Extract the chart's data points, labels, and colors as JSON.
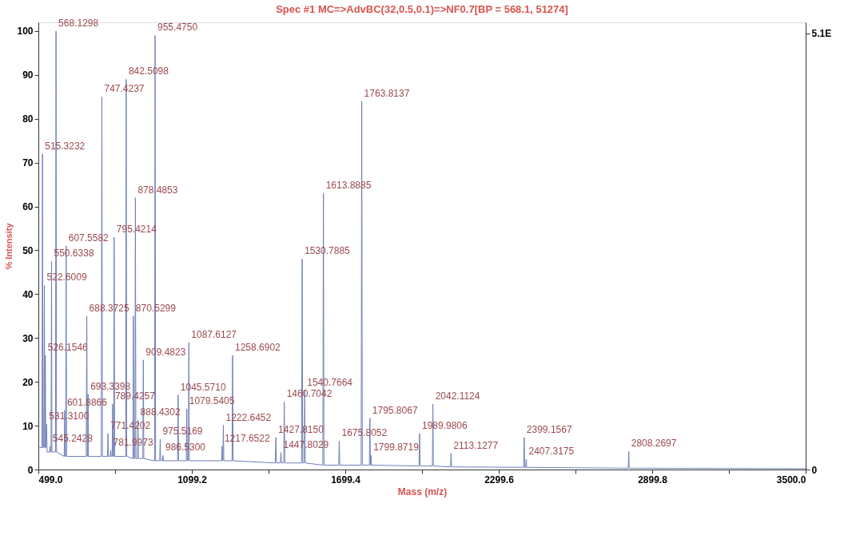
{
  "chart_data": {
    "type": "line",
    "title": "Spec #1 MC=>AdvBC(32,0.5,0.1)=>NF0.7[BP = 568.1, 51274]",
    "xlabel": "Mass (m/z)",
    "ylabel": "% Intensity",
    "xlim": [
      499,
      3500
    ],
    "xticks": [
      {
        "value": 499,
        "label": "499.0"
      },
      {
        "value": 799.1,
        "label": null
      },
      {
        "value": 1099.2,
        "label": "1099.2"
      },
      {
        "value": 1399.3,
        "label": null
      },
      {
        "value": 1699.4,
        "label": "1699.4"
      },
      {
        "value": 1999.5,
        "label": null
      },
      {
        "value": 2299.6,
        "label": "2299.6"
      },
      {
        "value": 2599.7,
        "label": null
      },
      {
        "value": 2899.8,
        "label": "2899.8"
      },
      {
        "value": 3199.9,
        "label": null
      },
      {
        "value": 3500,
        "label": "3500.0"
      }
    ],
    "ylim": [
      0,
      102
    ],
    "yticks": [
      0,
      10,
      20,
      30,
      40,
      50,
      60,
      70,
      80,
      90,
      100
    ],
    "y2lim": [
      0,
      5.23
    ],
    "y2ticks": [
      {
        "value": 0,
        "label": "0"
      },
      {
        "value": 5.1,
        "label": "5.1E"
      }
    ],
    "grid": false,
    "marker": "none",
    "line_style": "solid",
    "series": [
      {
        "color": "#6f7fb8",
        "x": [
          499,
          513,
          515.3,
          517,
          520,
          522.6,
          524,
          526.2,
          528,
          531.3,
          533,
          543,
          545.2,
          547,
          548.5,
          550.6,
          552,
          566,
          568.1,
          570,
          600,
          601.9,
          603,
          605.5,
          607.6,
          609.5,
          686,
          688.4,
          690.5,
          692,
          693.3,
          695,
          745,
          747.4,
          749.5,
          769.5,
          771.4,
          773,
          780,
          782,
          784,
          787.5,
          789.4,
          791.5,
          793.5,
          795.4,
          797.5,
          840.5,
          842.5,
          844.5,
          868.5,
          870.5,
          872.5,
          876.5,
          878.5,
          880.5,
          886.5,
          888.4,
          890.5,
          907.5,
          909.5,
          911.5,
          953.5,
          955.5,
          957.5,
          973.5,
          975.5,
          977.5,
          984.5,
          986.5,
          988.5,
          1043.5,
          1045.6,
          1047.5,
          1077.5,
          1079.5,
          1081.5,
          1085.5,
          1087.6,
          1089.5,
          1215.5,
          1217.7,
          1219.5,
          1220.5,
          1222.6,
          1224.5,
          1256.5,
          1258.7,
          1260.5,
          1425.5,
          1427.8,
          1430,
          1445.5,
          1447.8,
          1450,
          1458.5,
          1460.7,
          1463,
          1528.5,
          1530.8,
          1533,
          1538.5,
          1540.8,
          1543,
          1611.5,
          1613.9,
          1616,
          1673.5,
          1675.8,
          1678,
          1761.5,
          1763.8,
          1766,
          1793.5,
          1795.8,
          1797.8,
          1799.9,
          1802,
          1987.5,
          1990,
          1992,
          2040,
          2042.1,
          2044,
          2111,
          2113.1,
          2115,
          2397,
          2399.2,
          2401,
          2405,
          2407.3,
          2409,
          2806,
          2808.3,
          2810,
          3500
        ],
        "values": [
          5,
          5,
          72,
          5,
          5,
          42,
          5,
          26,
          5,
          10.3,
          4,
          4,
          5.3,
          4,
          4,
          47.5,
          4,
          4,
          100,
          4,
          3,
          13.5,
          3,
          3,
          51,
          3,
          3,
          35,
          3,
          3,
          17.2,
          3,
          3,
          85,
          3,
          3,
          8.2,
          3,
          3,
          4.4,
          3,
          3,
          14.9,
          3,
          3,
          53,
          3,
          3,
          89,
          3,
          2.5,
          35,
          2.5,
          2.5,
          62,
          2.5,
          2.5,
          11.3,
          2.5,
          2.5,
          25,
          2.5,
          2,
          99,
          2,
          2,
          6.9,
          2,
          2,
          3.2,
          2,
          2,
          17,
          2,
          2,
          13.8,
          2,
          2,
          29,
          2,
          2,
          5.3,
          2,
          2,
          10.1,
          2,
          2,
          26,
          2,
          1.5,
          7.3,
          1.5,
          1.5,
          3.9,
          1.5,
          1.5,
          15.4,
          1.5,
          1.5,
          48,
          1.5,
          1.5,
          18,
          1.5,
          1,
          63,
          1,
          1,
          6.5,
          1,
          1,
          84,
          1,
          1,
          11.7,
          1,
          3.2,
          1,
          0.8,
          8.2,
          0.8,
          0.8,
          14.9,
          0.8,
          0.6,
          3.7,
          0.6,
          0.5,
          7.3,
          0.5,
          0.5,
          2.3,
          0.5,
          0.3,
          4.1,
          0.3,
          0.2
        ]
      }
    ],
    "annotations": [
      {
        "text": "515.3232",
        "x": 515.3232,
        "y": 72
      },
      {
        "text": "522.6009",
        "x": 522.6009,
        "y": 42
      },
      {
        "text": "526.1546",
        "x": 526.1546,
        "y": 26
      },
      {
        "text": "531.3100",
        "x": 531.31,
        "y": 10.3
      },
      {
        "text": "545.2428",
        "x": 545.2428,
        "y": 5.3
      },
      {
        "text": "550.6338",
        "x": 550.6338,
        "y": 47.5
      },
      {
        "text": "568.1298",
        "x": 568.1298,
        "y": 100
      },
      {
        "text": "601.8866",
        "x": 601.8866,
        "y": 13.5
      },
      {
        "text": "607.5582",
        "x": 607.5582,
        "y": 51
      },
      {
        "text": "688.3725",
        "x": 688.3725,
        "y": 35
      },
      {
        "text": "693.3398",
        "x": 693.3398,
        "y": 17.2
      },
      {
        "text": "747.4237",
        "x": 747.4237,
        "y": 85
      },
      {
        "text": "771.4202",
        "x": 771.4202,
        "y": 8.2
      },
      {
        "text": "781.9973",
        "x": 781.9973,
        "y": 4.4
      },
      {
        "text": "789.4257",
        "x": 789.4257,
        "y": 14.9
      },
      {
        "text": "795.4214",
        "x": 795.4214,
        "y": 53
      },
      {
        "text": "842.5098",
        "x": 842.5098,
        "y": 89
      },
      {
        "text": "870.5299",
        "x": 870.5299,
        "y": 35
      },
      {
        "text": "878.4853",
        "x": 878.4853,
        "y": 62
      },
      {
        "text": "888.4302",
        "x": 888.4302,
        "y": 11.3
      },
      {
        "text": "909.4823",
        "x": 909.4823,
        "y": 25
      },
      {
        "text": "955.4750",
        "x": 955.475,
        "y": 99
      },
      {
        "text": "975.5169",
        "x": 975.5169,
        "y": 6.9
      },
      {
        "text": "986.5300",
        "x": 986.53,
        "y": 3.2
      },
      {
        "text": "1045.5710",
        "x": 1045.571,
        "y": 17
      },
      {
        "text": "1079.5405",
        "x": 1079.5405,
        "y": 13.8
      },
      {
        "text": "1087.6127",
        "x": 1087.6127,
        "y": 29
      },
      {
        "text": "1217.6522",
        "x": 1217.6522,
        "y": 5.3
      },
      {
        "text": "1222.6452",
        "x": 1222.6452,
        "y": 10.1
      },
      {
        "text": "1258.6902",
        "x": 1258.6902,
        "y": 26
      },
      {
        "text": "1427.8150",
        "x": 1427.815,
        "y": 7.3
      },
      {
        "text": "1447.8029",
        "x": 1447.8029,
        "y": 3.9
      },
      {
        "text": "1460.7042",
        "x": 1460.7042,
        "y": 15.4
      },
      {
        "text": "1530.7885",
        "x": 1530.7885,
        "y": 48
      },
      {
        "text": "1540.7664",
        "x": 1540.7664,
        "y": 18
      },
      {
        "text": "1613.8885",
        "x": 1613.8885,
        "y": 63
      },
      {
        "text": "1675.8052",
        "x": 1675.8052,
        "y": 6.5
      },
      {
        "text": "1763.8137",
        "x": 1763.8137,
        "y": 84
      },
      {
        "text": "1795.8067",
        "x": 1795.8067,
        "y": 11.7
      },
      {
        "text": "1799.8719",
        "x": 1799.8719,
        "y": 3.2
      },
      {
        "text": "1989.9806",
        "x": 1989.9806,
        "y": 8.2
      },
      {
        "text": "2042.1124",
        "x": 2042.1124,
        "y": 14.9
      },
      {
        "text": "2113.1277",
        "x": 2113.1277,
        "y": 3.7
      },
      {
        "text": "2399.1567",
        "x": 2399.1567,
        "y": 7.3
      },
      {
        "text": "2407.3175",
        "x": 2407.3175,
        "y": 2.3
      },
      {
        "text": "2808.2697",
        "x": 2808.2697,
        "y": 4.1
      }
    ]
  }
}
